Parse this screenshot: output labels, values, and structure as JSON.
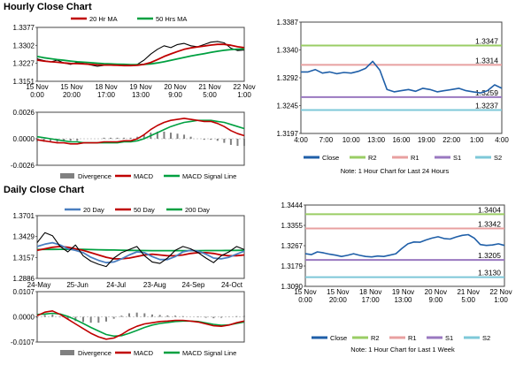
{
  "titles": {
    "hourly": "Hourly Close Chart",
    "daily": "Daily Close Chart"
  },
  "chart_data": [
    {
      "id": "hourly_ma",
      "type": "line",
      "legend": [
        "20 Hr MA",
        "50 Hrs MA"
      ],
      "colors": {
        "ma1": "#c00000",
        "ma2": "#00a040",
        "price": "#000000"
      },
      "yticks": [
        "1.3377",
        "1.3302",
        "1.3227",
        "1.3151"
      ],
      "ylim": [
        1.3151,
        1.3377
      ],
      "xticks": [
        [
          "15 Nov",
          "0:00"
        ],
        [
          "15 Nov",
          "20:00"
        ],
        [
          "18 Nov",
          "17:00"
        ],
        [
          "19 Nov",
          "13:00"
        ],
        [
          "20 Nov",
          "9:00"
        ],
        [
          "21 Nov",
          "5:00"
        ],
        [
          "22 Nov",
          "1:00"
        ]
      ],
      "price": [
        1.3245,
        1.3238,
        1.3232,
        1.324,
        1.3228,
        1.3222,
        1.323,
        1.3226,
        1.322,
        1.3214,
        1.3218,
        1.3224,
        1.322,
        1.3216,
        1.3218,
        1.3222,
        1.324,
        1.3265,
        1.3285,
        1.33,
        1.3292,
        1.3305,
        1.331,
        1.33,
        1.3296,
        1.3305,
        1.3315,
        1.3318,
        1.3312,
        1.329,
        1.328,
        1.3282
      ],
      "ma20": [
        1.324,
        1.3236,
        1.3233,
        1.3231,
        1.3228,
        1.3226,
        1.3225,
        1.3224,
        1.3222,
        1.322,
        1.3219,
        1.3219,
        1.3218,
        1.3217,
        1.3217,
        1.3218,
        1.3222,
        1.323,
        1.3242,
        1.3255,
        1.3266,
        1.3276,
        1.3285,
        1.3291,
        1.3295,
        1.3299,
        1.3303,
        1.3306,
        1.3306,
        1.3302,
        1.3296,
        1.3292
      ],
      "ma50": [
        1.3255,
        1.325,
        1.3246,
        1.3242,
        1.3239,
        1.3236,
        1.3233,
        1.3231,
        1.3229,
        1.3227,
        1.3225,
        1.3224,
        1.3223,
        1.3222,
        1.3221,
        1.3221,
        1.3222,
        1.3224,
        1.3228,
        1.3233,
        1.3239,
        1.3245,
        1.3251,
        1.3257,
        1.3262,
        1.3267,
        1.3272,
        1.3277,
        1.3281,
        1.3284,
        1.3286,
        1.3287
      ]
    },
    {
      "id": "hourly_macd",
      "type": "line",
      "legend": [
        "Divergence",
        "MACD",
        "MACD Signal Line"
      ],
      "colors": {
        "macd": "#c00000",
        "signal": "#00a040",
        "divergence": "#808080"
      },
      "yticks": [
        "0.0026",
        "0.0000",
        "-0.0026"
      ],
      "ylim": [
        -0.0026,
        0.0026
      ],
      "xticks": [
        [
          "15 Nov",
          "0:00"
        ],
        [
          "15 Nov",
          "20:00"
        ],
        [
          "18 Nov",
          "17:00"
        ],
        [
          "19 Nov",
          "13:00"
        ],
        [
          "20 Nov",
          "9:00"
        ],
        [
          "21 Nov",
          "5:00"
        ],
        [
          "22 Nov",
          "1:00"
        ]
      ],
      "macd": [
        -0.0001,
        -0.0002,
        -0.0003,
        -0.0004,
        -0.0004,
        -0.0005,
        -0.0005,
        -0.0004,
        -0.0004,
        -0.0004,
        -0.0003,
        -0.0003,
        -0.0003,
        -0.0002,
        -0.0002,
        0.0,
        0.0004,
        0.0009,
        0.0013,
        0.0016,
        0.0018,
        0.0019,
        0.002,
        0.0019,
        0.0018,
        0.0017,
        0.0017,
        0.0015,
        0.0012,
        0.0008,
        0.0005,
        0.0003
      ],
      "signal": [
        0.0002,
        0.0001,
        0.0,
        -0.0001,
        -0.0002,
        -0.0003,
        -0.0003,
        -0.0004,
        -0.0004,
        -0.0004,
        -0.0004,
        -0.0004,
        -0.0004,
        -0.0003,
        -0.0003,
        -0.0002,
        0.0,
        0.0003,
        0.0006,
        0.0009,
        0.0012,
        0.0014,
        0.0016,
        0.0017,
        0.0018,
        0.0018,
        0.0018,
        0.0017,
        0.0016,
        0.0014,
        0.0012,
        0.001
      ]
    },
    {
      "id": "hourly_levels",
      "type": "line",
      "legend": [
        "Close",
        "R2",
        "R1",
        "S1",
        "S2"
      ],
      "colors": {
        "close": "#1f5fa8",
        "r2": "#9acd64",
        "r1": "#e8a0a0",
        "s1": "#9a78c0",
        "s2": "#7ec8d8"
      },
      "yticks": [
        "1.3387",
        "1.3340",
        "1.3292",
        "1.3245",
        "1.3197"
      ],
      "ylim": [
        1.3197,
        1.3387
      ],
      "xticks": [
        "4:00",
        "7:00",
        "10:00",
        "13:00",
        "16:00",
        "19:00",
        "22:00",
        "1:00",
        "4:00"
      ],
      "levels": {
        "R2": 1.3347,
        "R1": 1.3314,
        "S1": 1.3259,
        "S2": 1.3237
      },
      "level_labels": [
        "1.3347",
        "1.3314",
        "1.3259",
        "1.3237"
      ],
      "close": [
        1.3302,
        1.3302,
        1.3306,
        1.33,
        1.3302,
        1.3299,
        1.3301,
        1.33,
        1.3303,
        1.3308,
        1.332,
        1.3305,
        1.3272,
        1.3268,
        1.327,
        1.3272,
        1.3269,
        1.3274,
        1.3272,
        1.3268,
        1.327,
        1.3272,
        1.3274,
        1.327,
        1.3268,
        1.3266,
        1.327,
        1.328,
        1.3274
      ],
      "note": "Note: 1 Hour Chart for Last 24 Hours"
    },
    {
      "id": "daily_ma",
      "type": "line",
      "legend": [
        "20 Day",
        "50 Day",
        "200 Day"
      ],
      "colors": {
        "ma20": "#4a7ec0",
        "ma50": "#c00000",
        "ma200": "#00a040",
        "price": "#000000"
      },
      "yticks": [
        "1.3701",
        "1.3429",
        "1.3157",
        "1.2886"
      ],
      "ylim": [
        1.2886,
        1.3701
      ],
      "xticks": [
        "24-May",
        "25-Jun",
        "24-Jul",
        "23-Aug",
        "24-Sep",
        "24-Oct"
      ],
      "price": [
        1.335,
        1.348,
        1.344,
        1.33,
        1.323,
        1.332,
        1.318,
        1.311,
        1.307,
        1.304,
        1.315,
        1.322,
        1.326,
        1.33,
        1.318,
        1.31,
        1.308,
        1.315,
        1.325,
        1.33,
        1.327,
        1.322,
        1.315,
        1.309,
        1.318,
        1.323,
        1.33,
        1.326
      ],
      "ma20": [
        1.33,
        1.333,
        1.335,
        1.332,
        1.327,
        1.325,
        1.322,
        1.316,
        1.312,
        1.309,
        1.31,
        1.314,
        1.319,
        1.323,
        1.322,
        1.317,
        1.313,
        1.313,
        1.317,
        1.323,
        1.325,
        1.324,
        1.32,
        1.315,
        1.314,
        1.316,
        1.32,
        1.324
      ],
      "ma50": [
        1.325,
        1.327,
        1.329,
        1.33,
        1.329,
        1.327,
        1.325,
        1.322,
        1.319,
        1.316,
        1.314,
        1.314,
        1.315,
        1.317,
        1.319,
        1.32,
        1.319,
        1.318,
        1.318,
        1.319,
        1.321,
        1.322,
        1.322,
        1.321,
        1.319,
        1.318,
        1.318,
        1.319
      ],
      "ma200": [
        1.326,
        1.3262,
        1.3263,
        1.3264,
        1.3264,
        1.3263,
        1.3262,
        1.326,
        1.3258,
        1.3256,
        1.3254,
        1.3252,
        1.325,
        1.3249,
        1.3248,
        1.3247,
        1.3246,
        1.3246,
        1.3246,
        1.3246,
        1.3247,
        1.3247,
        1.3248,
        1.3248,
        1.3248,
        1.3249,
        1.325,
        1.3252
      ]
    },
    {
      "id": "daily_macd",
      "type": "line",
      "legend": [
        "Divergence",
        "MACD",
        "MACD Signal Line"
      ],
      "colors": {
        "macd": "#c00000",
        "signal": "#00a040",
        "divergence": "#808080"
      },
      "yticks": [
        "0.0107",
        "0.0000",
        "-0.0107"
      ],
      "ylim": [
        -0.0107,
        0.0107
      ],
      "xticks": [
        "24-May",
        "25-Jun",
        "24-Jul",
        "23-Aug",
        "24-Sep",
        "24-Oct"
      ],
      "macd": [
        0.0005,
        0.002,
        0.0025,
        0.001,
        -0.001,
        -0.003,
        -0.005,
        -0.007,
        -0.0085,
        -0.0095,
        -0.009,
        -0.0075,
        -0.0055,
        -0.004,
        -0.003,
        -0.0025,
        -0.002,
        -0.0018,
        -0.0015,
        -0.0015,
        -0.0018,
        -0.0022,
        -0.003,
        -0.0038,
        -0.004,
        -0.0035,
        -0.0025,
        -0.0018
      ],
      "signal": [
        0.001,
        0.0012,
        0.0015,
        0.0012,
        0.0002,
        -0.0012,
        -0.0028,
        -0.0045,
        -0.006,
        -0.0075,
        -0.0082,
        -0.008,
        -0.007,
        -0.0058,
        -0.0045,
        -0.0035,
        -0.0028,
        -0.0024,
        -0.002,
        -0.0018,
        -0.0018,
        -0.002,
        -0.0026,
        -0.0032,
        -0.0036,
        -0.0034,
        -0.0028,
        -0.0022
      ]
    },
    {
      "id": "daily_levels",
      "type": "line",
      "legend": [
        "Close",
        "R2",
        "R1",
        "S1",
        "S2"
      ],
      "colors": {
        "close": "#1f5fa8",
        "r2": "#9acd64",
        "r1": "#e8a0a0",
        "s1": "#9a78c0",
        "s2": "#7ec8d8"
      },
      "yticks": [
        "1.3444",
        "1.3355",
        "1.3267",
        "1.3179",
        "1.3090"
      ],
      "ylim": [
        1.309,
        1.3444
      ],
      "xticks": [
        [
          "15 Nov",
          "0:00"
        ],
        [
          "15 Nov",
          "20:00"
        ],
        [
          "18 Nov",
          "17:00"
        ],
        [
          "19 Nov",
          "13:00"
        ],
        [
          "20 Nov",
          "9:00"
        ],
        [
          "21 Nov",
          "5:00"
        ],
        [
          "22 Nov",
          "1:00"
        ]
      ],
      "levels": {
        "R2": 1.3404,
        "R1": 1.3342,
        "S1": 1.3205,
        "S2": 1.313
      },
      "level_labels": [
        "1.3404",
        "1.3342",
        "1.3205",
        "1.3130"
      ],
      "close": [
        1.3232,
        1.3228,
        1.324,
        1.3236,
        1.323,
        1.3226,
        1.322,
        1.3225,
        1.3232,
        1.3225,
        1.322,
        1.3218,
        1.3222,
        1.322,
        1.3226,
        1.3232,
        1.3255,
        1.3275,
        1.3283,
        1.3282,
        1.3292,
        1.33,
        1.3306,
        1.3298,
        1.3296,
        1.3305,
        1.3312,
        1.3315,
        1.33,
        1.3272,
        1.3268,
        1.327,
        1.3275,
        1.3268
      ],
      "note": "Note: 1 Hour Chart for Last 1 Week"
    }
  ]
}
